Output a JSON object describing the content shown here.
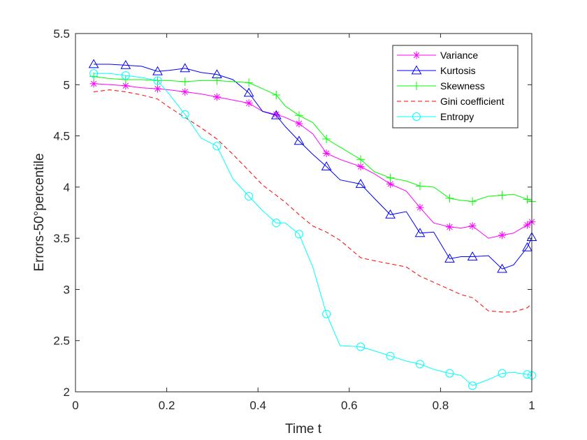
{
  "chart_data": {
    "type": "line",
    "title": "",
    "xlabel": "Time t",
    "ylabel": "Errors-50°percentile",
    "xlim": [
      0,
      1
    ],
    "ylim": [
      2,
      5.5
    ],
    "xticks": [
      0,
      0.2,
      0.4,
      0.6,
      0.8,
      1
    ],
    "xtick_labels": [
      "0",
      "0.2",
      "0.4",
      "0.6",
      "0.8",
      "1"
    ],
    "yticks": [
      2,
      2.5,
      3,
      3.5,
      4,
      4.5,
      5,
      5.5
    ],
    "ytick_labels": [
      "2",
      "2.5",
      "3",
      "3.5",
      "4",
      "4.5",
      "5",
      "5.5"
    ],
    "grid": false,
    "legend_position": "top-right",
    "x": [
      0.04,
      0.075,
      0.11,
      0.145,
      0.18,
      0.205,
      0.24,
      0.275,
      0.31,
      0.345,
      0.38,
      0.41,
      0.44,
      0.46,
      0.49,
      0.52,
      0.55,
      0.58,
      0.625,
      0.655,
      0.69,
      0.725,
      0.755,
      0.785,
      0.82,
      0.845,
      0.87,
      0.905,
      0.935,
      0.96,
      0.99,
      1.0
    ],
    "series": [
      {
        "name": "Variance",
        "color": "#ff00ff",
        "marker": "asterisk",
        "line_style": "solid",
        "values": [
          5.01,
          5.0,
          4.99,
          4.97,
          4.96,
          4.95,
          4.93,
          4.91,
          4.88,
          4.85,
          4.82,
          4.74,
          4.71,
          4.68,
          4.62,
          4.52,
          4.33,
          4.27,
          4.2,
          4.13,
          4.03,
          3.96,
          3.8,
          3.65,
          3.61,
          3.6,
          3.62,
          3.5,
          3.53,
          3.55,
          3.63,
          3.66
        ]
      },
      {
        "name": "Kurtosis",
        "color": "#0000ff",
        "marker": "triangle",
        "line_style": "solid",
        "values": [
          5.2,
          5.2,
          5.19,
          5.18,
          5.13,
          5.14,
          5.16,
          5.12,
          5.1,
          5.05,
          4.92,
          4.74,
          4.7,
          4.59,
          4.45,
          4.32,
          4.2,
          4.07,
          4.03,
          3.89,
          3.73,
          3.76,
          3.55,
          3.56,
          3.3,
          3.32,
          3.32,
          3.33,
          3.2,
          3.24,
          3.41,
          3.51
        ]
      },
      {
        "name": "Skewness",
        "color": "#00ff00",
        "marker": "plus",
        "line_style": "solid",
        "values": [
          5.08,
          5.06,
          5.05,
          5.05,
          5.04,
          5.04,
          5.03,
          5.04,
          5.04,
          5.03,
          5.02,
          4.96,
          4.9,
          4.79,
          4.7,
          4.63,
          4.47,
          4.39,
          4.27,
          4.15,
          4.09,
          4.06,
          4.01,
          4.0,
          3.89,
          3.87,
          3.86,
          3.91,
          3.92,
          3.93,
          3.88,
          3.86
        ]
      },
      {
        "name": "Gini coefficient",
        "color": "#ff0000",
        "marker": "none",
        "line_style": "dashed",
        "values": [
          4.93,
          4.95,
          4.93,
          4.9,
          4.86,
          4.78,
          4.68,
          4.58,
          4.47,
          4.32,
          4.16,
          4.02,
          3.92,
          3.85,
          3.73,
          3.62,
          3.56,
          3.48,
          3.31,
          3.28,
          3.25,
          3.22,
          3.13,
          3.07,
          3.0,
          2.95,
          2.92,
          2.79,
          2.78,
          2.78,
          2.82,
          2.86
        ]
      },
      {
        "name": "Entropy",
        "color": "#00ffff",
        "marker": "circle",
        "line_style": "solid",
        "values": [
          5.11,
          5.11,
          5.09,
          5.07,
          5.04,
          4.91,
          4.71,
          4.48,
          4.4,
          4.08,
          3.91,
          3.77,
          3.65,
          3.65,
          3.54,
          3.22,
          2.76,
          2.45,
          2.44,
          2.4,
          2.35,
          2.3,
          2.27,
          2.22,
          2.18,
          2.16,
          2.06,
          2.12,
          2.18,
          2.19,
          2.17,
          2.16
        ]
      }
    ]
  }
}
